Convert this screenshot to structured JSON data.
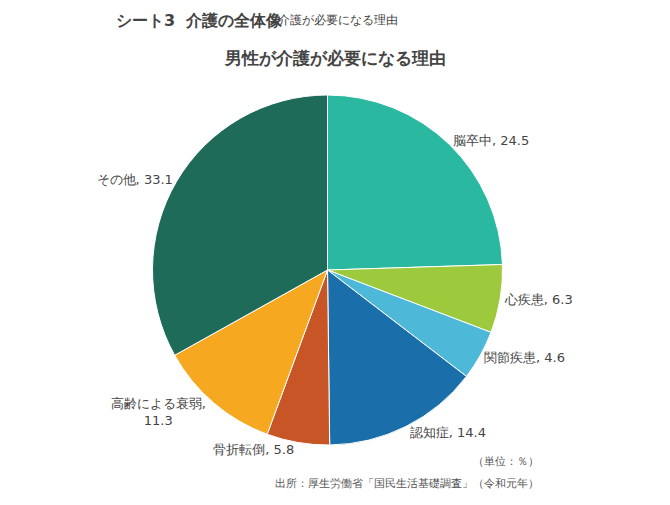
{
  "chart_data": {
    "type": "pie",
    "title": "男性が介護が必要になる理由",
    "categories": [
      "脳卒中",
      "心疾患",
      "関節疾患",
      "認知症",
      "骨折転倒",
      "高齢による衰弱",
      "その他"
    ],
    "values": [
      24.5,
      6.3,
      4.6,
      14.4,
      5.8,
      11.3,
      33.1
    ],
    "value_labels": [
      "脳卒中, 24.5",
      "心疾患, 6.3",
      "関節疾患, 4.6",
      "認知症, 14.4",
      "骨折転倒, 5.8",
      "高齢による衰弱,\n11.3",
      "その他, 33.1"
    ],
    "colors": [
      "#2ab8a0",
      "#9dc93c",
      "#4db8d8",
      "#1a6faa",
      "#c85525",
      "#f5a820",
      "#1e6b5a"
    ],
    "data_labels": true,
    "annotations": [
      "シート3  介護の全体像",
      "介護が必要になる理由",
      "（単位：％）",
      "出所：厚生労働省「国民生活基礎調査」（令和元年）"
    ]
  }
}
